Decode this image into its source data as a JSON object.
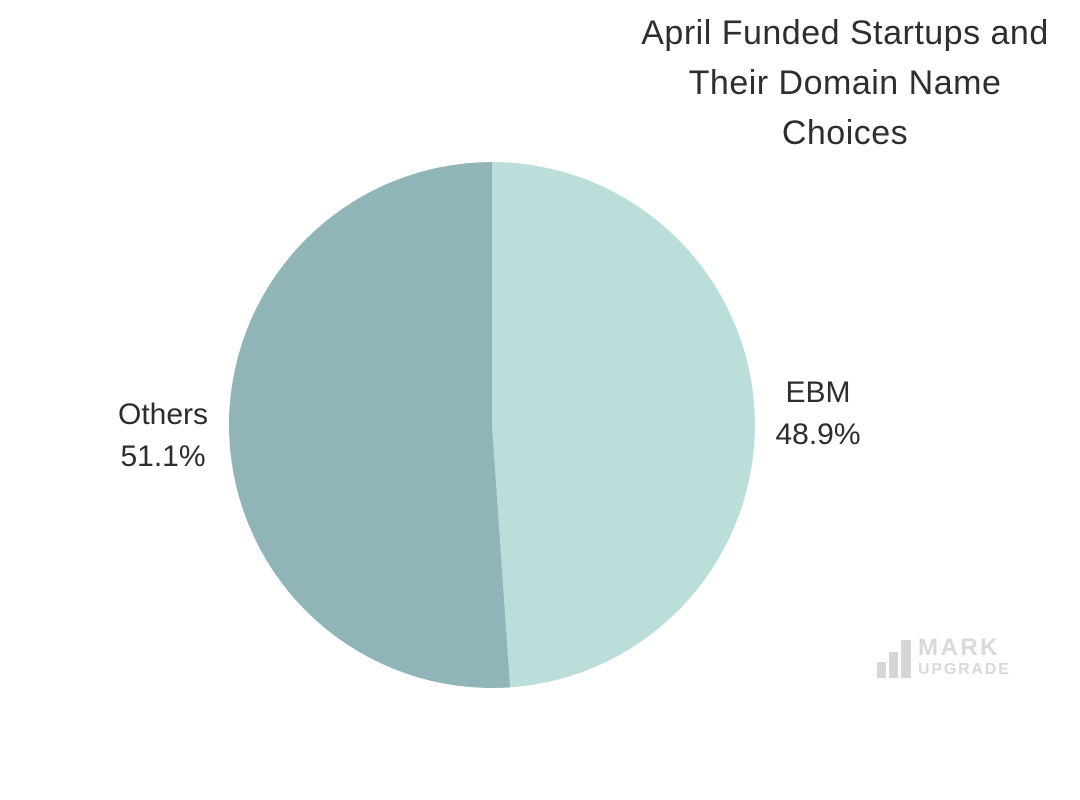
{
  "title": {
    "line1": "April Funded Startups and",
    "line2": "Their Domain Name",
    "line3": "Choices"
  },
  "chart_data": {
    "type": "pie",
    "title": "April Funded Startups and Their Domain Name Choices",
    "categories": [
      "EBM",
      "Others"
    ],
    "values": [
      48.9,
      51.1
    ],
    "colors": [
      "#bcdedb",
      "#90b4b7"
    ],
    "start_angle_deg": 0,
    "direction": "clockwise",
    "legend_position": "none",
    "labels": [
      {
        "name": "EBM",
        "pct": "48.9%"
      },
      {
        "name": "Others",
        "pct": "51.1%"
      }
    ]
  },
  "logo": {
    "line1": "MARK",
    "line2": "UPGRADE"
  }
}
